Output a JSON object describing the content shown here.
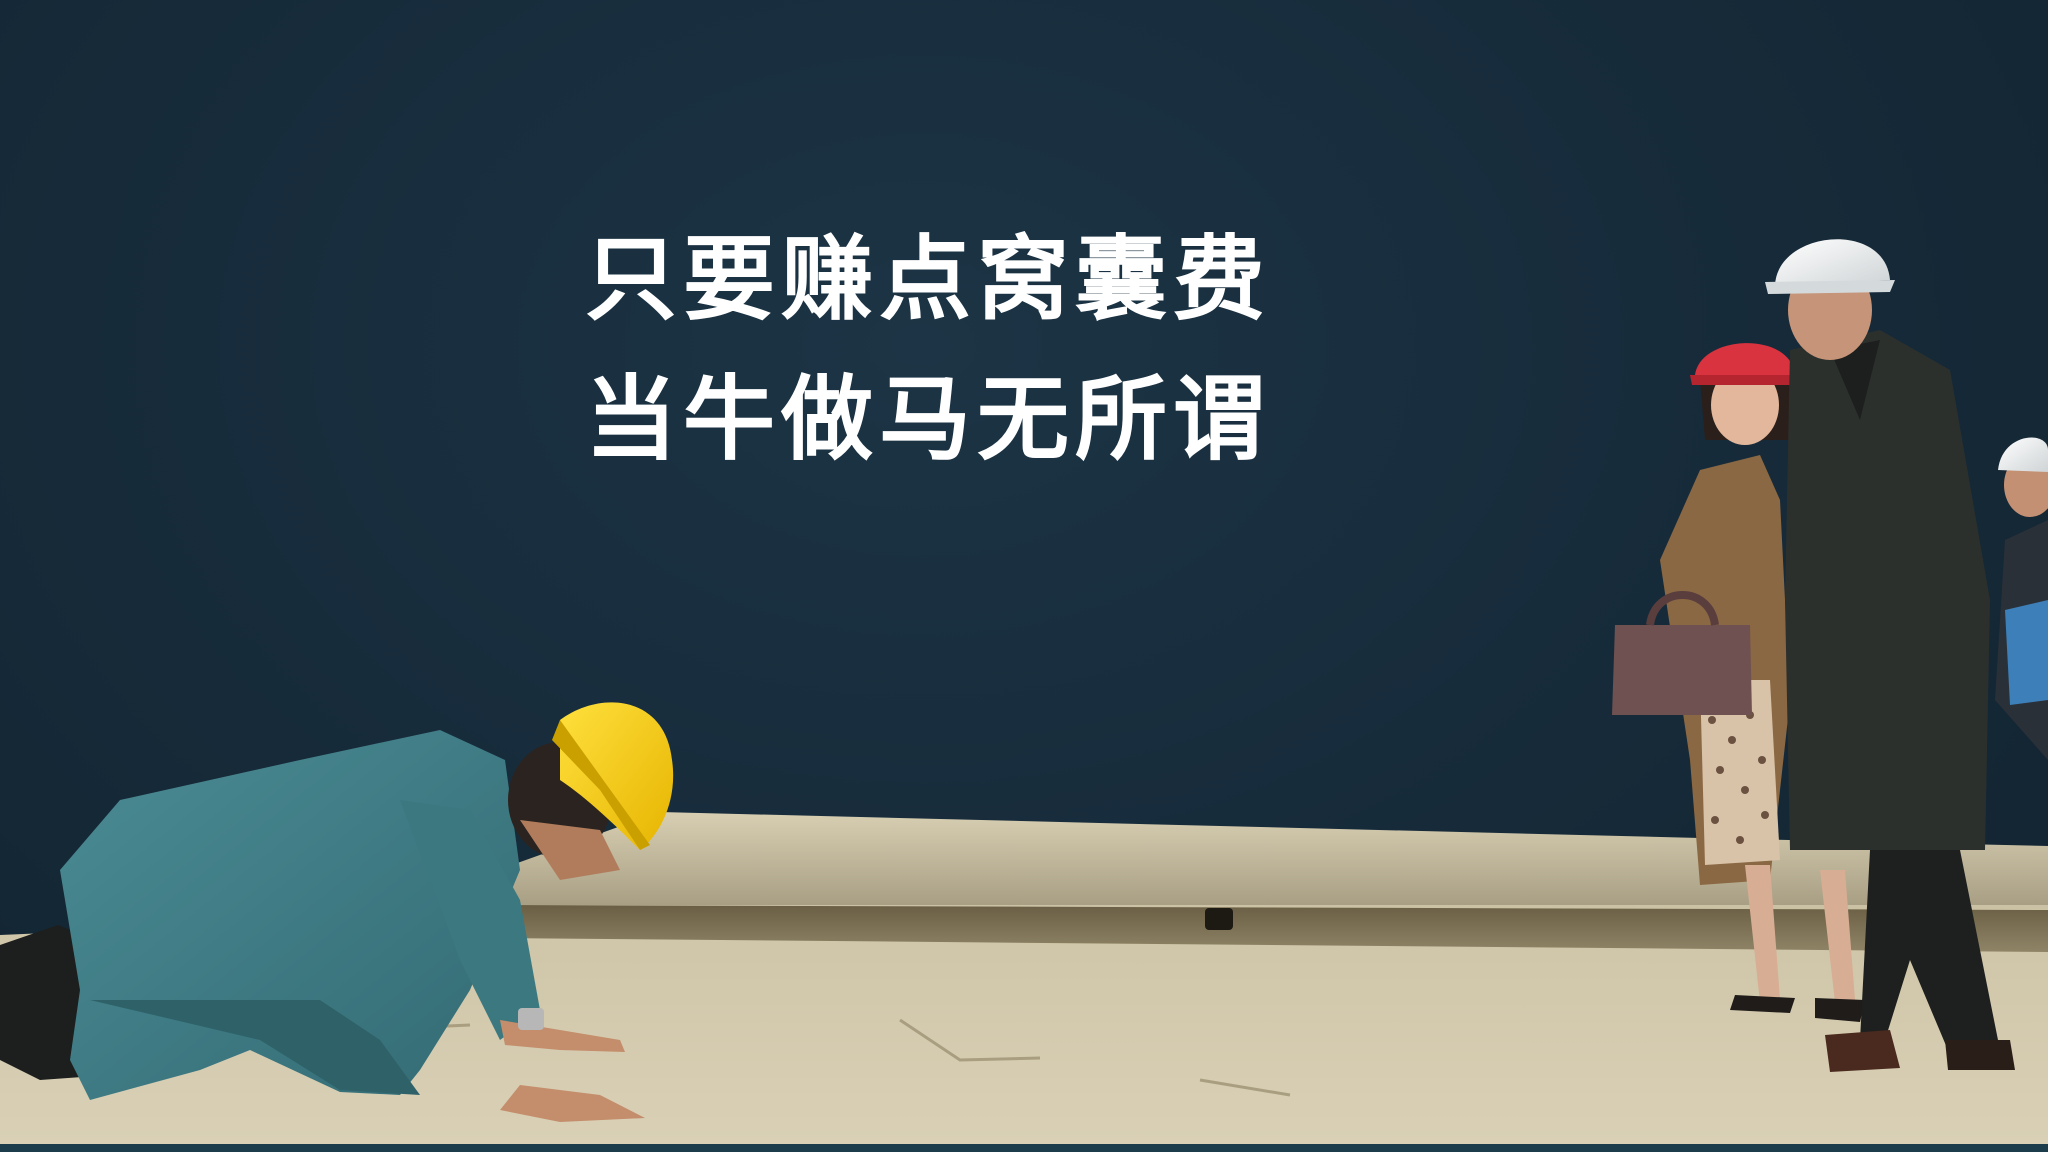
{
  "headline": {
    "line1": "只要赚点窝囊费",
    "line2": "当牛做马无所谓"
  },
  "colors": {
    "background": "#162a39",
    "headline_text": "#ffffff",
    "worker_helmet": "#f5c400",
    "worker_suit": "#3f7d86",
    "ground": "#cfc5a8",
    "executive_helmet": "#f2f2f2",
    "woman_helmet": "#d9333f",
    "woman_coat": "#8a6843",
    "man_coat": "#2c302d"
  }
}
